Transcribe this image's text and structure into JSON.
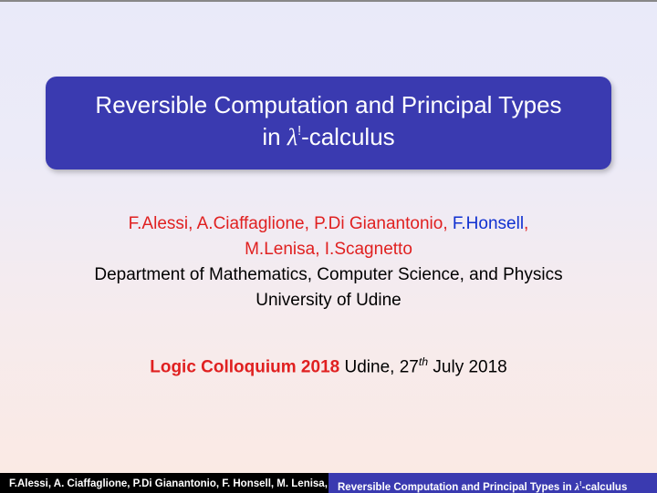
{
  "colors": {
    "title_box_bg": "#3a3ab0",
    "title_text": "#ffffff",
    "author_red": "#e02020",
    "author_blue": "#1030d0",
    "body_text": "#000000",
    "footer_left_bg": "#000000",
    "footer_right_bg": "#3a3ab0",
    "bg_gradient_top": "#e9eaf9",
    "bg_gradient_bottom": "#fbeae3"
  },
  "title": {
    "line1": "Reversible Computation and Principal Types",
    "line2_prefix": "in ",
    "line2_lambda": "λ",
    "line2_sup": "!",
    "line2_suffix": "-calculus"
  },
  "authors": {
    "red1": "F.Alessi, A.Ciaffaglione, P.Di Gianantonio, ",
    "blue_prefix": "F.",
    "blue_name": "Honsell",
    "red_comma": ",",
    "red2": "M.Lenisa, I.Scagnetto"
  },
  "affiliation": {
    "line1": "Department of Mathematics, Computer Science, and Physics",
    "line2": "University of Udine"
  },
  "venue": {
    "event": "Logic Colloquium 2018",
    "rest_prefix": " Udine, 27",
    "ordinal": "th",
    "rest_suffix": " July 2018"
  },
  "footer": {
    "left": "F.Alessi, A. Ciaffaglione, P.Di Gianantonio, F. Honsell, M. Lenisa, I. Scagnetto",
    "right_prefix": "Reversible Computation and Principal Types in ",
    "right_lambda": "λ",
    "right_sup": "!",
    "right_suffix": "-calculus"
  }
}
